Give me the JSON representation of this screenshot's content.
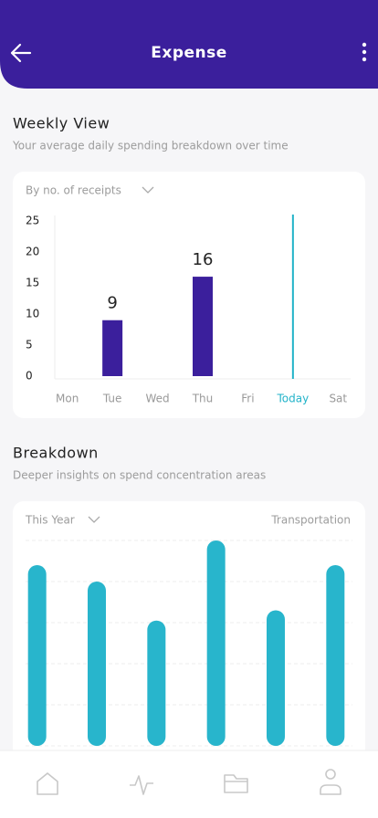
{
  "header": {
    "title": "Expense"
  },
  "weekly": {
    "title": "Weekly View",
    "subtitle": "Your average daily spending breakdown over time",
    "filter": "By no. of receipts",
    "chart_data": {
      "type": "bar",
      "categories": [
        "Mon",
        "Tue",
        "Wed",
        "Thu",
        "Fri",
        "Today",
        "Sat"
      ],
      "values": [
        null,
        9,
        null,
        16,
        null,
        null,
        null
      ],
      "color": "#3b1f9c",
      "highlight_index": 5,
      "highlight_color": "#22b3c9",
      "ylim": [
        0,
        26
      ],
      "yticks": [
        0,
        5,
        10,
        15,
        20,
        25
      ],
      "ytick_labels": true,
      "data_labels": true,
      "grid": false
    }
  },
  "breakdown": {
    "title": "Breakdown",
    "subtitle": "Deeper insights on spend concentration areas",
    "filter": "This Year",
    "category_label": "Transportation",
    "chart_data": {
      "type": "bar",
      "categories": [
        null,
        null,
        null,
        null,
        null,
        null
      ],
      "values": [
        4.4,
        4,
        3.05,
        5,
        3.3,
        4.4
      ],
      "color": "#28b5cc",
      "ylim": [
        0,
        5
      ],
      "yticks": [
        0,
        1,
        2,
        3,
        4,
        5
      ],
      "ytick_labels": false,
      "data_labels": false,
      "grid": true
    }
  }
}
